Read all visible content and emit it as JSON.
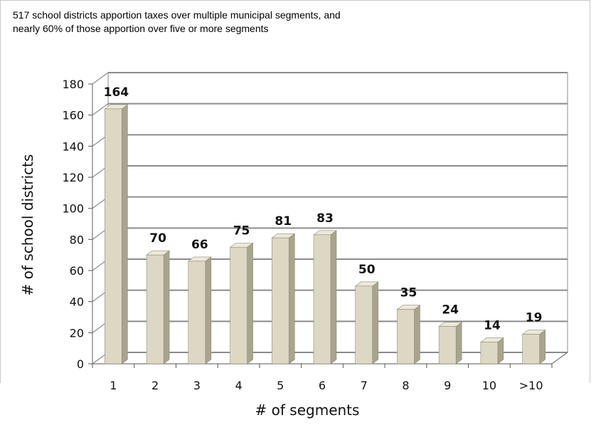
{
  "chart_data": {
    "type": "bar",
    "title_lines": [
      "517 school districts apportion taxes over multiple municipal segments, and",
      "nearly 60% of those apportion over five or more segments"
    ],
    "categories": [
      "1",
      "2",
      "3",
      "4",
      "5",
      "6",
      "7",
      "8",
      "9",
      "10",
      ">10"
    ],
    "values": [
      164,
      70,
      66,
      75,
      81,
      83,
      50,
      35,
      24,
      14,
      19
    ],
    "xlabel": "# of segments",
    "ylabel": "# of school districts",
    "ylim": [
      0,
      180
    ],
    "yticks": [
      0,
      20,
      40,
      60,
      80,
      100,
      120,
      140,
      160,
      180
    ],
    "grid": true,
    "style": "3d-column",
    "colors": {
      "bar_front": "#dcd8c4",
      "bar_side": "#a8a48e",
      "bar_top": "#ece9db",
      "grid": "#8c8c8c",
      "wall": "#ffffff"
    }
  }
}
